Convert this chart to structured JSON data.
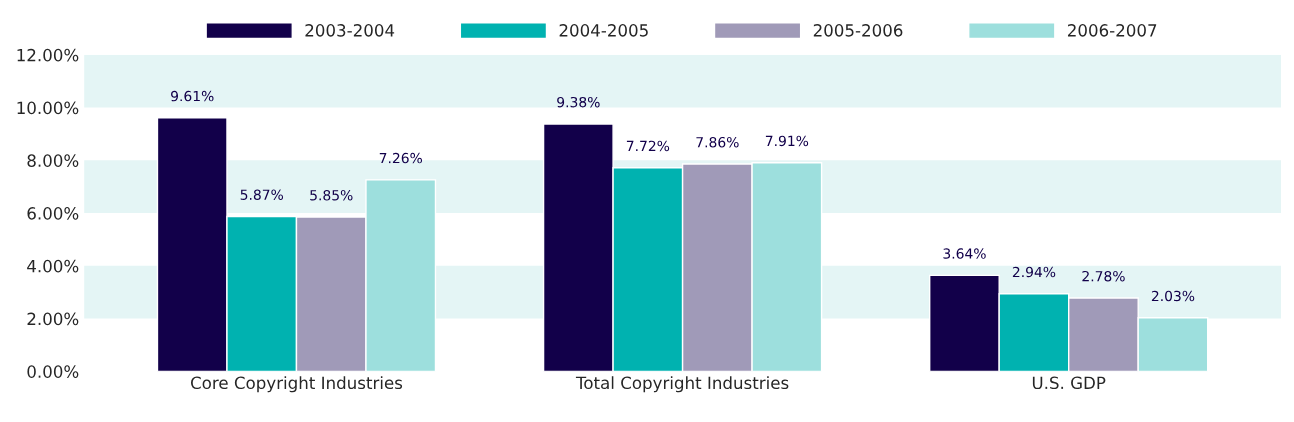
{
  "chart_data": {
    "type": "bar",
    "categories": [
      "Core Copyright Industries",
      "Total Copyright Industries",
      "U.S. GDP"
    ],
    "series": [
      {
        "name": "2003-2004",
        "color": "#12004a",
        "values": [
          9.61,
          9.38,
          3.64
        ],
        "value_labels": [
          "9.61%",
          "9.38%",
          "3.64%"
        ]
      },
      {
        "name": "2004-2005",
        "color": "#00b2b0",
        "values": [
          5.87,
          7.72,
          2.94
        ],
        "value_labels": [
          "5.87%",
          "7.72%",
          "2.94%"
        ]
      },
      {
        "name": "2005-2006",
        "color": "#a09ab8",
        "values": [
          5.85,
          7.86,
          2.78
        ],
        "value_labels": [
          "5.85%",
          "7.86%",
          "2.78%"
        ]
      },
      {
        "name": "2006-2007",
        "color": "#9ddfdd",
        "values": [
          7.26,
          7.91,
          2.03
        ],
        "value_labels": [
          "7.26%",
          "7.91%",
          "2.03%"
        ]
      }
    ],
    "ylim": [
      0,
      12
    ],
    "yticks": [
      {
        "value": 0,
        "label": "0.00%"
      },
      {
        "value": 2,
        "label": "2.00%"
      },
      {
        "value": 4,
        "label": "4.00%"
      },
      {
        "value": 6,
        "label": "6.00%"
      },
      {
        "value": 8,
        "label": "8.00%"
      },
      {
        "value": 10,
        "label": "10.00%"
      },
      {
        "value": 12,
        "label": "12.00%"
      }
    ],
    "bands": [
      {
        "axis": "y",
        "from": 2,
        "to": 4,
        "color": "#e4f5f5"
      },
      {
        "axis": "y",
        "from": 6,
        "to": 8,
        "color": "#e4f5f5"
      },
      {
        "axis": "y",
        "from": 10,
        "to": 12,
        "color": "#e4f5f5"
      }
    ],
    "grid": false,
    "legend": "top"
  }
}
